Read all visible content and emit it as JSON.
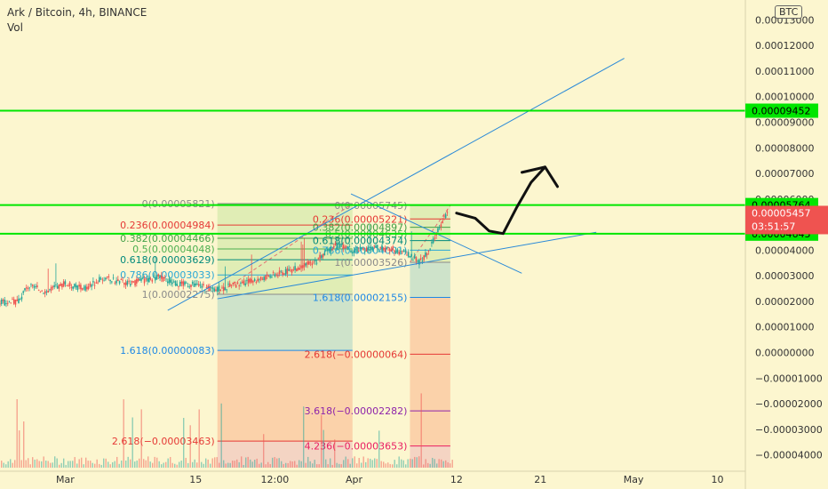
{
  "chart_title": "Ark / Bitcoin, 4h, BINANCE",
  "volume_label": "Vol",
  "currency_badge": "BTC",
  "colors": {
    "background": "#fcf6cf",
    "candle_up": "#26a69a",
    "candle_down": "#ef5350",
    "hline": "#00e600",
    "trendline": "#2a8ad8",
    "last_price": "#ef5350",
    "fib_top": "#8a8a8a",
    "fib_0236": "#e53935",
    "fib_0382": "#43a047",
    "fib_05": "#4caf50",
    "fib_0618": "#00897b",
    "fib_0786": "#29a7d6",
    "fib_1618": "#1e88e5",
    "fib_2618": "#e53935",
    "fib_3618": "#8e24aa",
    "fib_4236": "#e91e63"
  },
  "chart_data": {
    "type": "candlestick",
    "y_axis": {
      "range": [
        -4.5e-05,
        0.000135
      ],
      "ticks": [
        {
          "v": 0.00013,
          "label": "0.00013000"
        },
        {
          "v": 0.00012,
          "label": "0.00012000"
        },
        {
          "v": 0.00011,
          "label": "0.00011000"
        },
        {
          "v": 0.0001,
          "label": "0.00010000"
        },
        {
          "v": 9e-05,
          "label": "0.00009000"
        },
        {
          "v": 8e-05,
          "label": "0.00008000"
        },
        {
          "v": 7e-05,
          "label": "0.00007000"
        },
        {
          "v": 6e-05,
          "label": "0.00006000"
        },
        {
          "v": 5e-05,
          "label": "0.00005000"
        },
        {
          "v": 4e-05,
          "label": "0.00004000"
        },
        {
          "v": 3e-05,
          "label": "0.00003000"
        },
        {
          "v": 2e-05,
          "label": "0.00002000"
        },
        {
          "v": 1e-05,
          "label": "0.00001000"
        },
        {
          "v": 0.0,
          "label": "0.00000000"
        },
        {
          "v": -1e-05,
          "label": "−0.00001000"
        },
        {
          "v": -2e-05,
          "label": "−0.00002000"
        },
        {
          "v": -3e-05,
          "label": "−0.00003000"
        },
        {
          "v": -4e-05,
          "label": "−0.00004000"
        }
      ]
    },
    "x_axis": {
      "start_date": "2020-02-23",
      "end_date": "2020-05-13",
      "ticks": [
        {
          "date": "2020-03-01T00:00",
          "label": "Mar"
        },
        {
          "date": "2020-03-15T00:00",
          "label": "15"
        },
        {
          "date": "2020-03-23T12:00",
          "label": "12:00"
        },
        {
          "date": "2020-04-01T00:00",
          "label": "Apr"
        },
        {
          "date": "2020-04-12T00:00",
          "label": "12"
        },
        {
          "date": "2020-04-21T00:00",
          "label": "21"
        },
        {
          "date": "2020-05-01T00:00",
          "label": "May"
        },
        {
          "date": "2020-05-10T00:00",
          "label": "10"
        }
      ]
    },
    "price_path": [
      {
        "date": "2020-02-23",
        "price": 1.95e-05
      },
      {
        "date": "2020-02-25",
        "price": 2e-05
      },
      {
        "date": "2020-02-26",
        "price": 2.6e-05
      },
      {
        "date": "2020-02-28",
        "price": 2.4e-05
      },
      {
        "date": "2020-03-01",
        "price": 2.7e-05
      },
      {
        "date": "2020-03-03",
        "price": 2.5e-05
      },
      {
        "date": "2020-03-05",
        "price": 2.9e-05
      },
      {
        "date": "2020-03-08",
        "price": 2.7e-05
      },
      {
        "date": "2020-03-11",
        "price": 2.95e-05
      },
      {
        "date": "2020-03-13",
        "price": 2.7e-05
      },
      {
        "date": "2020-03-15",
        "price": 2.65e-05
      },
      {
        "date": "2020-03-17",
        "price": 2.45e-05
      },
      {
        "date": "2020-03-20",
        "price": 2.7e-05
      },
      {
        "date": "2020-03-23",
        "price": 3e-05
      },
      {
        "date": "2020-03-26",
        "price": 3.3e-05
      },
      {
        "date": "2020-03-28",
        "price": 3.6e-05
      },
      {
        "date": "2020-03-30",
        "price": 4.2e-05
      },
      {
        "date": "2020-04-01",
        "price": 4e-05
      },
      {
        "date": "2020-04-03",
        "price": 4.1e-05
      },
      {
        "date": "2020-04-05",
        "price": 4.05e-05
      },
      {
        "date": "2020-04-07",
        "price": 3.8e-05
      },
      {
        "date": "2020-04-08",
        "price": 3.55e-05
      },
      {
        "date": "2020-04-09",
        "price": 3.9e-05
      },
      {
        "date": "2020-04-10",
        "price": 4.8e-05
      },
      {
        "date": "2020-04-11",
        "price": 5.46e-05
      }
    ],
    "candle_interval_hours": 4,
    "current_price": {
      "value": 5.457e-05,
      "label": "0.00005457",
      "countdown": "03:51:57"
    },
    "horizontal_levels": [
      {
        "value": 9.452e-05,
        "label": "0.00009452"
      },
      {
        "value": 5.764e-05,
        "label": "0.00005764"
      },
      {
        "value": 4.645e-05,
        "label": "0.00004645"
      }
    ],
    "fib_retracements": [
      {
        "start_date": "2020-03-17T08:00",
        "end_date": "2020-03-31T20:00",
        "high": 5.821e-05,
        "low": 2.275e-05,
        "levels": [
          {
            "level": "0",
            "value": 5.821e-05,
            "label": "0(0.00005821)",
            "color_key": "fib_top"
          },
          {
            "level": "0.236",
            "value": 4.984e-05,
            "label": "0.236(0.00004984)",
            "color_key": "fib_0236"
          },
          {
            "level": "0.382",
            "value": 4.466e-05,
            "label": "0.382(0.00004466)",
            "color_key": "fib_0382"
          },
          {
            "level": "0.5",
            "value": 4.048e-05,
            "label": "0.5(0.00004048)",
            "color_key": "fib_05"
          },
          {
            "level": "0.618",
            "value": 3.629e-05,
            "label": "0.618(0.00003629)",
            "color_key": "fib_0618"
          },
          {
            "level": "0.786",
            "value": 3.033e-05,
            "label": "0.786(0.00003033)",
            "color_key": "fib_0786"
          },
          {
            "level": "1",
            "value": 2.275e-05,
            "label": "1(0.00002275)",
            "color_key": "fib_top"
          },
          {
            "level": "1.618",
            "value": 8.3e-07,
            "label": "1.618(0.00000083)",
            "color_key": "fib_1618"
          },
          {
            "level": "2.618",
            "value": -3.463e-05,
            "label": "2.618(−0.00003463)",
            "color_key": "fib_2618"
          }
        ]
      },
      {
        "start_date": "2020-04-07T00:00",
        "end_date": "2020-04-11T08:00",
        "high": 5.745e-05,
        "low": 3.526e-05,
        "levels": [
          {
            "level": "0",
            "value": 5.745e-05,
            "label": "0(0.00005745)",
            "color_key": "fib_top"
          },
          {
            "level": "0.236",
            "value": 5.221e-05,
            "label": "0.236(0.00005221)",
            "color_key": "fib_0236"
          },
          {
            "level": "0.382",
            "value": 4.897e-05,
            "label": "0.382(0.00004897)",
            "color_key": "fib_0382"
          },
          {
            "level": "0.5",
            "value": 4.635e-05,
            "label": "0.5(0.00004635)",
            "color_key": "fib_05"
          },
          {
            "level": "0.618",
            "value": 4.374e-05,
            "label": "0.618(0.00004374)",
            "color_key": "fib_0618"
          },
          {
            "level": "0.786",
            "value": 4.001e-05,
            "label": "0.786(0.00004001)",
            "color_key": "fib_0786"
          },
          {
            "level": "1",
            "value": 3.526e-05,
            "label": "1(0.00003526)",
            "color_key": "fib_top"
          },
          {
            "level": "1.618",
            "value": 2.155e-05,
            "label": "1.618(0.00002155)",
            "color_key": "fib_1618"
          },
          {
            "level": "2.618",
            "value": -6.4e-07,
            "label": "2.618(−0.00000064)",
            "color_key": "fib_2618"
          },
          {
            "level": "3.618",
            "value": -2.282e-05,
            "label": "3.618(−0.00002282)",
            "color_key": "fib_3618"
          },
          {
            "level": "4.236",
            "value": -3.653e-05,
            "label": "4.236(−0.00003653)",
            "color_key": "fib_4236"
          }
        ]
      }
    ],
    "trendlines": [
      {
        "from": {
          "date": "2020-03-12T00:00",
          "price": 1.65e-05
        },
        "to": {
          "date": "2020-04-30T00:00",
          "price": 0.000115
        }
      },
      {
        "from": {
          "date": "2020-03-17T08:00",
          "price": 2.1e-05
        },
        "to": {
          "date": "2020-04-27T00:00",
          "price": 4.7e-05
        }
      },
      {
        "from": {
          "date": "2020-03-31T16:00",
          "price": 6.2e-05
        },
        "to": {
          "date": "2020-04-19T00:00",
          "price": 3.1e-05
        }
      }
    ],
    "projection_arrow": [
      {
        "date": "2020-04-12T00:00",
        "price": 5.45e-05
      },
      {
        "date": "2020-04-14T00:00",
        "price": 5.25e-05
      },
      {
        "date": "2020-04-15T12:00",
        "price": 4.75e-05
      },
      {
        "date": "2020-04-17T00:00",
        "price": 4.65e-05
      },
      {
        "date": "2020-04-18T12:00",
        "price": 5.7e-05
      },
      {
        "date": "2020-04-20T00:00",
        "price": 6.65e-05
      },
      {
        "date": "2020-04-21T12:00",
        "price": 7.25e-05
      }
    ],
    "volume_panel": true
  }
}
